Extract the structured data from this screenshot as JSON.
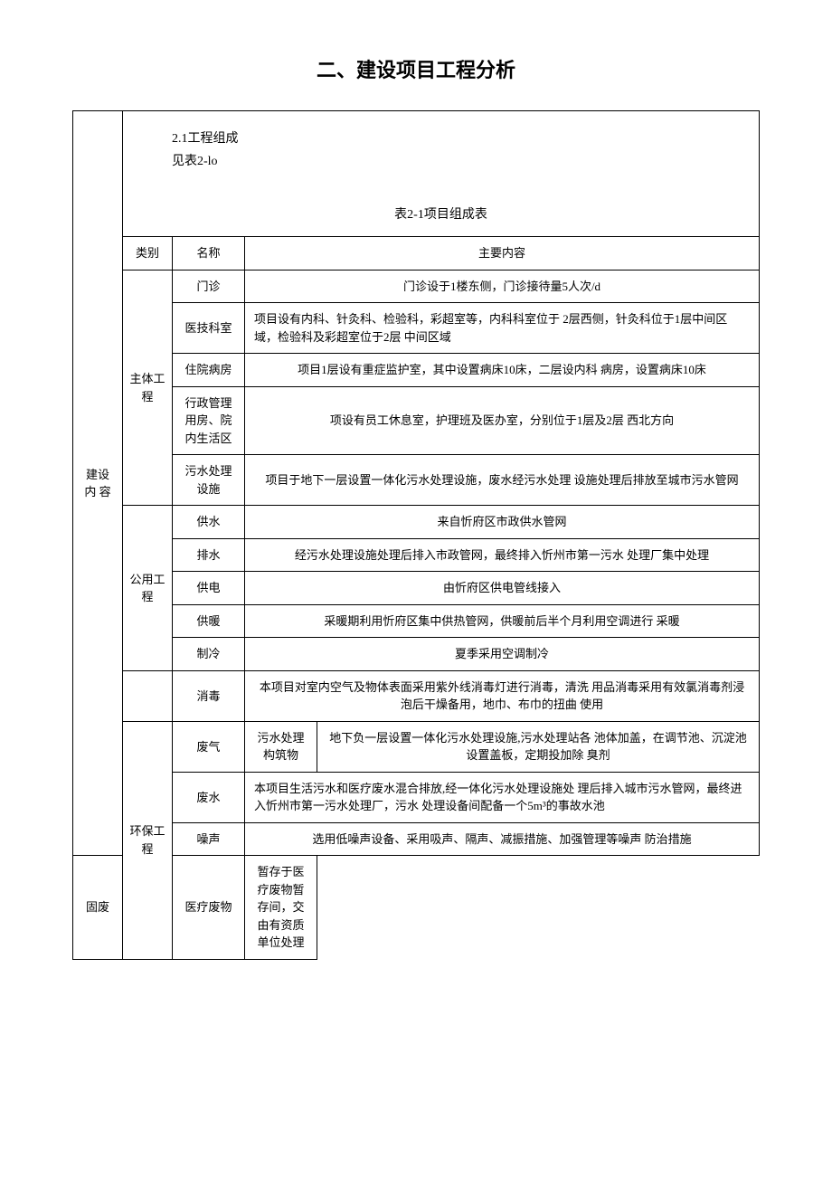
{
  "title": "二、建设项目工程分析",
  "section_heading": "2.1工程组成",
  "section_ref": "见表2-lo",
  "table_caption": "表2-1项目组成表",
  "master_label": "建设 内 容",
  "headers": {
    "category": "类别",
    "name": "名称",
    "content": "主要内容"
  },
  "groups": [
    {
      "category": "主体工程",
      "rows": [
        {
          "name": "门诊",
          "content": "门诊设于1楼东侧，门诊接待量5人次/d"
        },
        {
          "name": "医技科室",
          "content": "项目设有内科、针灸科、检验科，彩超室等，内科科室位于 2层西侧，针灸科位于1层中间区域，检验科及彩超室位于2层 中间区域"
        },
        {
          "name": "住院病房",
          "content": "项目1层设有重症监护室，其中设置病床10床，二层设内科 病房，设置病床10床"
        },
        {
          "name": "行政管理 用房、院 内生活区",
          "content": "项设有员工休息室，护理班及医办室，分别位于1层及2层 西北方向"
        },
        {
          "name": "污水处理 设施",
          "content": "项目于地下一层设置一体化污水处理设施，废水经污水处理 设施处理后排放至城市污水管网"
        }
      ]
    },
    {
      "category": "公用工程",
      "rows": [
        {
          "name": "供水",
          "content": "来自忻府区市政供水管网"
        },
        {
          "name": "排水",
          "content": "经污水处理设施处理后排入市政管网，最终排入忻州市第一污水 处理厂集中处理"
        },
        {
          "name": "供电",
          "content": "由忻府区供电管线接入"
        },
        {
          "name": "供暖",
          "content": "采暖期利用忻府区集中供热管网，供暖前后半个月利用空调进行 采暖"
        },
        {
          "name": "制冷",
          "content": "夏季采用空调制冷"
        }
      ]
    },
    {
      "category": "",
      "rows": [
        {
          "name": "消毒",
          "content": "本项目对室内空气及物体表面采用紫外线消毒灯进行消毒，清洗 用品消毒采用有效氯消毒剂浸泡后干燥备用，地巾、布巾的扭曲 使用"
        }
      ]
    },
    {
      "category": "环保工程",
      "rows": [
        {
          "name": "废气",
          "sub": "污水处理 构筑物",
          "content": "地下负一层设置一体化污水处理设施,污水处理站各 池体加盖，在调节池、沉淀池设置盖板，定期投加除 臭剂"
        },
        {
          "name": "废水",
          "content": "本项目生活污水和医疗废水混合排放,经一体化污水处理设施处 理后排入城市污水管网，最终进入忻州市第一污水处理厂，污水   处理设备间配备一个5m³的事故水池"
        },
        {
          "name": "噪声",
          "content": "选用低噪声设备、采用吸声、隔声、减振措施、加强管理等噪声 防治措施"
        },
        {
          "name": "固废",
          "sub": "医疗废物",
          "content": "暂存于医疗废物暂存间，交由有资质单位处理"
        }
      ]
    }
  ]
}
